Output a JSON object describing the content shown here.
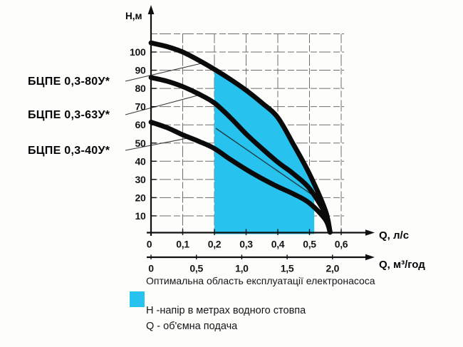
{
  "axis_labels": {
    "y": "Н,м",
    "x_primary": "Q, л/с",
    "x_secondary": "Q, м³/год"
  },
  "pump_labels": [
    {
      "label": "БЦПЕ 0,3-80У*"
    },
    {
      "label": "БЦПЕ 0,3-63У*"
    },
    {
      "label": "БЦПЕ 0,3-40У*"
    }
  ],
  "legend": {
    "optimal_area_text": "Оптимальна область експлуатації електронасоса",
    "h_definition": "Н -напір в метрах водного стовпа",
    "q_definition": "Q - об'ємна подача",
    "swatch_color": "#27c3ee"
  },
  "chart_data": {
    "type": "line",
    "title": "",
    "ylabel": "Н,м",
    "xlabel": "Q, л/с",
    "xlabel_secondary": "Q, м³/год",
    "xlim": [
      0,
      0.6
    ],
    "ylim": [
      0,
      110
    ],
    "grid": true,
    "legend_position": "none",
    "y_ticks": [
      {
        "value": 10,
        "label": "10"
      },
      {
        "value": 20,
        "label": "20"
      },
      {
        "value": 30,
        "label": "30"
      },
      {
        "value": 40,
        "label": "40"
      },
      {
        "value": 50,
        "label": "50"
      },
      {
        "value": 60,
        "label": "60"
      },
      {
        "value": 70,
        "label": "70"
      },
      {
        "value": 80,
        "label": "80"
      },
      {
        "value": 90,
        "label": "90"
      },
      {
        "value": 100,
        "label": "100"
      }
    ],
    "x_ticks": [
      {
        "value": 0,
        "label": "0"
      },
      {
        "value": 0.1,
        "label": "0,1"
      },
      {
        "value": 0.2,
        "label": "0,2"
      },
      {
        "value": 0.3,
        "label": "0,3"
      },
      {
        "value": 0.4,
        "label": "0,4"
      },
      {
        "value": 0.5,
        "label": "0,5"
      },
      {
        "value": 0.6,
        "label": "0,6"
      }
    ],
    "x_ticks_secondary": [
      {
        "value": 0,
        "label": "0"
      },
      {
        "value": 0.5,
        "label": "0,5"
      },
      {
        "value": 1.0,
        "label": "1,0"
      },
      {
        "value": 1.5,
        "label": "1,5"
      },
      {
        "value": 2.0,
        "label": "2,0"
      }
    ],
    "series": [
      {
        "name": "БЦПЕ 0,3-80У*",
        "points": [
          [
            0,
            105
          ],
          [
            0.05,
            103
          ],
          [
            0.1,
            100
          ],
          [
            0.15,
            95.5
          ],
          [
            0.2,
            90.5
          ],
          [
            0.25,
            85
          ],
          [
            0.3,
            79
          ],
          [
            0.35,
            72
          ],
          [
            0.4,
            64
          ],
          [
            0.45,
            49
          ],
          [
            0.5,
            33
          ],
          [
            0.55,
            13
          ],
          [
            0.565,
            1
          ]
        ]
      },
      {
        "name": "БЦПЕ 0,3-63У*",
        "points": [
          [
            0,
            86
          ],
          [
            0.05,
            84
          ],
          [
            0.1,
            81
          ],
          [
            0.15,
            77
          ],
          [
            0.2,
            72
          ],
          [
            0.25,
            64
          ],
          [
            0.3,
            55
          ],
          [
            0.35,
            47
          ],
          [
            0.4,
            39.5
          ],
          [
            0.45,
            33
          ],
          [
            0.5,
            25
          ],
          [
            0.55,
            11
          ],
          [
            0.565,
            1
          ]
        ]
      },
      {
        "name": "БЦПЕ 0,3-40У*",
        "points": [
          [
            0,
            61.5
          ],
          [
            0.05,
            58.5
          ],
          [
            0.1,
            54.5
          ],
          [
            0.15,
            51
          ],
          [
            0.2,
            47
          ],
          [
            0.25,
            41
          ],
          [
            0.3,
            35.5
          ],
          [
            0.35,
            30.5
          ],
          [
            0.4,
            26
          ],
          [
            0.45,
            22
          ],
          [
            0.5,
            17
          ],
          [
            0.55,
            8
          ],
          [
            0.565,
            1
          ]
        ]
      }
    ],
    "optimal_region": {
      "q_min": 0.2,
      "q_max": 0.515,
      "color": "#27c3ee"
    }
  }
}
